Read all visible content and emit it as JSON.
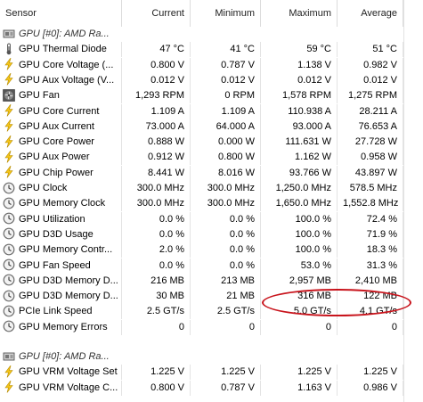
{
  "headers": {
    "sensor": "Sensor",
    "current": "Current",
    "minimum": "Minimum",
    "maximum": "Maximum",
    "average": "Average"
  },
  "groups": [
    {
      "title": "GPU [#0]: AMD Ra...",
      "rows": [
        {
          "label": "GPU Thermal Diode",
          "icon": "thermometer-icon",
          "current": "47 °C",
          "minimum": "41 °C",
          "maximum": "59 °C",
          "average": "51 °C"
        },
        {
          "label": "GPU Core Voltage (...",
          "icon": "lightning-icon",
          "current": "0.800 V",
          "minimum": "0.787 V",
          "maximum": "1.138 V",
          "average": "0.982 V"
        },
        {
          "label": "GPU Aux Voltage (V...",
          "icon": "lightning-icon",
          "current": "0.012 V",
          "minimum": "0.012 V",
          "maximum": "0.012 V",
          "average": "0.012 V"
        },
        {
          "label": "GPU Fan",
          "icon": "fan-icon",
          "current": "1,293 RPM",
          "minimum": "0 RPM",
          "maximum": "1,578 RPM",
          "average": "1,275 RPM"
        },
        {
          "label": "GPU Core Current",
          "icon": "lightning-icon",
          "current": "1.109 A",
          "minimum": "1.109 A",
          "maximum": "110.938 A",
          "average": "28.211 A"
        },
        {
          "label": "GPU Aux Current",
          "icon": "lightning-icon",
          "current": "73.000 A",
          "minimum": "64.000 A",
          "maximum": "93.000 A",
          "average": "76.653 A"
        },
        {
          "label": "GPU Core Power",
          "icon": "lightning-icon",
          "current": "0.888 W",
          "minimum": "0.000 W",
          "maximum": "111.631 W",
          "average": "27.728 W"
        },
        {
          "label": "GPU Aux Power",
          "icon": "lightning-icon",
          "current": "0.912 W",
          "minimum": "0.800 W",
          "maximum": "1.162 W",
          "average": "0.958 W"
        },
        {
          "label": "GPU Chip Power",
          "icon": "lightning-icon",
          "current": "8.441 W",
          "minimum": "8.016 W",
          "maximum": "93.766 W",
          "average": "43.897 W"
        },
        {
          "label": "GPU Clock",
          "icon": "clock-icon",
          "current": "300.0 MHz",
          "minimum": "300.0 MHz",
          "maximum": "1,250.0 MHz",
          "average": "578.5 MHz"
        },
        {
          "label": "GPU Memory Clock",
          "icon": "clock-icon",
          "current": "300.0 MHz",
          "minimum": "300.0 MHz",
          "maximum": "1,650.0 MHz",
          "average": "1,552.8 MHz"
        },
        {
          "label": "GPU Utilization",
          "icon": "clock-icon",
          "current": "0.0 %",
          "minimum": "0.0 %",
          "maximum": "100.0 %",
          "average": "72.4 %"
        },
        {
          "label": "GPU D3D Usage",
          "icon": "clock-icon",
          "current": "0.0 %",
          "minimum": "0.0 %",
          "maximum": "100.0 %",
          "average": "71.9 %"
        },
        {
          "label": "GPU Memory Contr...",
          "icon": "clock-icon",
          "current": "2.0 %",
          "minimum": "0.0 %",
          "maximum": "100.0 %",
          "average": "18.3 %"
        },
        {
          "label": "GPU Fan Speed",
          "icon": "clock-icon",
          "current": "0.0 %",
          "minimum": "0.0 %",
          "maximum": "53.0 %",
          "average": "31.3 %"
        },
        {
          "label": "GPU D3D Memory D...",
          "icon": "clock-icon",
          "current": "216 MB",
          "minimum": "213 MB",
          "maximum": "2,957 MB",
          "average": "2,410 MB"
        },
        {
          "label": "GPU D3D Memory D...",
          "icon": "clock-icon",
          "current": "30 MB",
          "minimum": "21 MB",
          "maximum": "316 MB",
          "average": "122 MB"
        },
        {
          "label": "PCIe Link Speed",
          "icon": "clock-icon",
          "current": "2.5 GT/s",
          "minimum": "2.5 GT/s",
          "maximum": "5.0 GT/s",
          "average": "4.1 GT/s"
        },
        {
          "label": "GPU Memory Errors",
          "icon": "clock-icon",
          "current": "0",
          "minimum": "0",
          "maximum": "0",
          "average": "0"
        }
      ]
    },
    {
      "title": "GPU [#0]: AMD Ra...",
      "rows": [
        {
          "label": "GPU VRM Voltage Set",
          "icon": "lightning-icon",
          "current": "1.225 V",
          "minimum": "1.225 V",
          "maximum": "1.225 V",
          "average": "1.225 V"
        },
        {
          "label": "GPU VRM Voltage C...",
          "icon": "lightning-icon",
          "current": "0.800 V",
          "minimum": "0.787 V",
          "maximum": "1.163 V",
          "average": "0.986 V"
        }
      ]
    }
  ],
  "colors": {
    "highlight_oval": "#c8141c",
    "lightning": "#f5c518",
    "grid": "#e3e3e3"
  }
}
